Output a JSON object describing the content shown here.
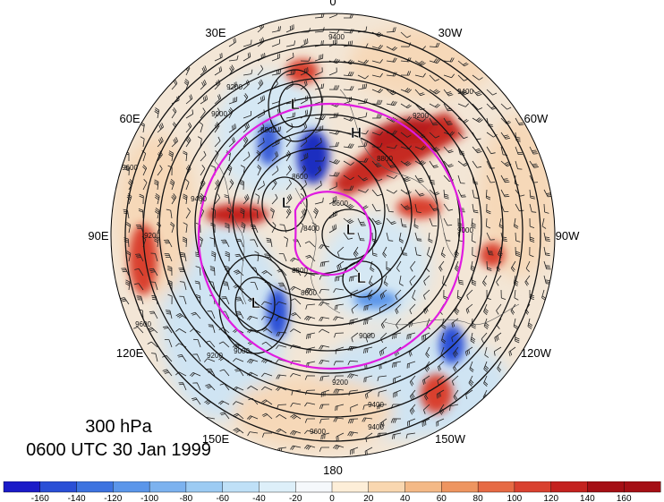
{
  "title": {
    "level": "300 hPa",
    "time": "0600 UTC 30 Jan 1999"
  },
  "longitude_labels": [
    {
      "text": "0",
      "angle": 0
    },
    {
      "text": "30W",
      "angle": 30
    },
    {
      "text": "60W",
      "angle": 60
    },
    {
      "text": "90W",
      "angle": 90
    },
    {
      "text": "120W",
      "angle": 120
    },
    {
      "text": "150W",
      "angle": 150
    },
    {
      "text": "180",
      "angle": 180
    },
    {
      "text": "150E",
      "angle": 210
    },
    {
      "text": "120E",
      "angle": 240
    },
    {
      "text": "90E",
      "angle": 270
    },
    {
      "text": "60E",
      "angle": 300
    },
    {
      "text": "30E",
      "angle": 330
    }
  ],
  "pressure_centers": [
    "L",
    "H",
    "L",
    "L",
    "L",
    "L"
  ],
  "contour_values": [
    "9400",
    "9200",
    "9000",
    "8800",
    "8600",
    "8400",
    "9400",
    "9200",
    "9000",
    "8800",
    "8600",
    "9400",
    "9200",
    "9600",
    "9600",
    "9400",
    "9200",
    "9000",
    "8800",
    "8600",
    "9600",
    "9400",
    "9200",
    "9000"
  ],
  "colorbar": {
    "ticks": [
      "-160",
      "-140",
      "-120",
      "-100",
      "-80",
      "-60",
      "-40",
      "-20",
      "0",
      "20",
      "40",
      "60",
      "80",
      "100",
      "120",
      "140",
      "160"
    ],
    "colors": [
      "#1b1bc8",
      "#2a4fd6",
      "#3d73e0",
      "#5b96ea",
      "#7cb2ef",
      "#9ccbf3",
      "#bfe0f7",
      "#ddeff9",
      "#f5f8fb",
      "#fdeed8",
      "#f9d7b0",
      "#f4b986",
      "#ee9560",
      "#e66a44",
      "#d9412f",
      "#c4221f",
      "#a50f15"
    ]
  },
  "colors": {
    "circle": "#e01be0",
    "contour": "#111111",
    "barb": "#222222"
  }
}
